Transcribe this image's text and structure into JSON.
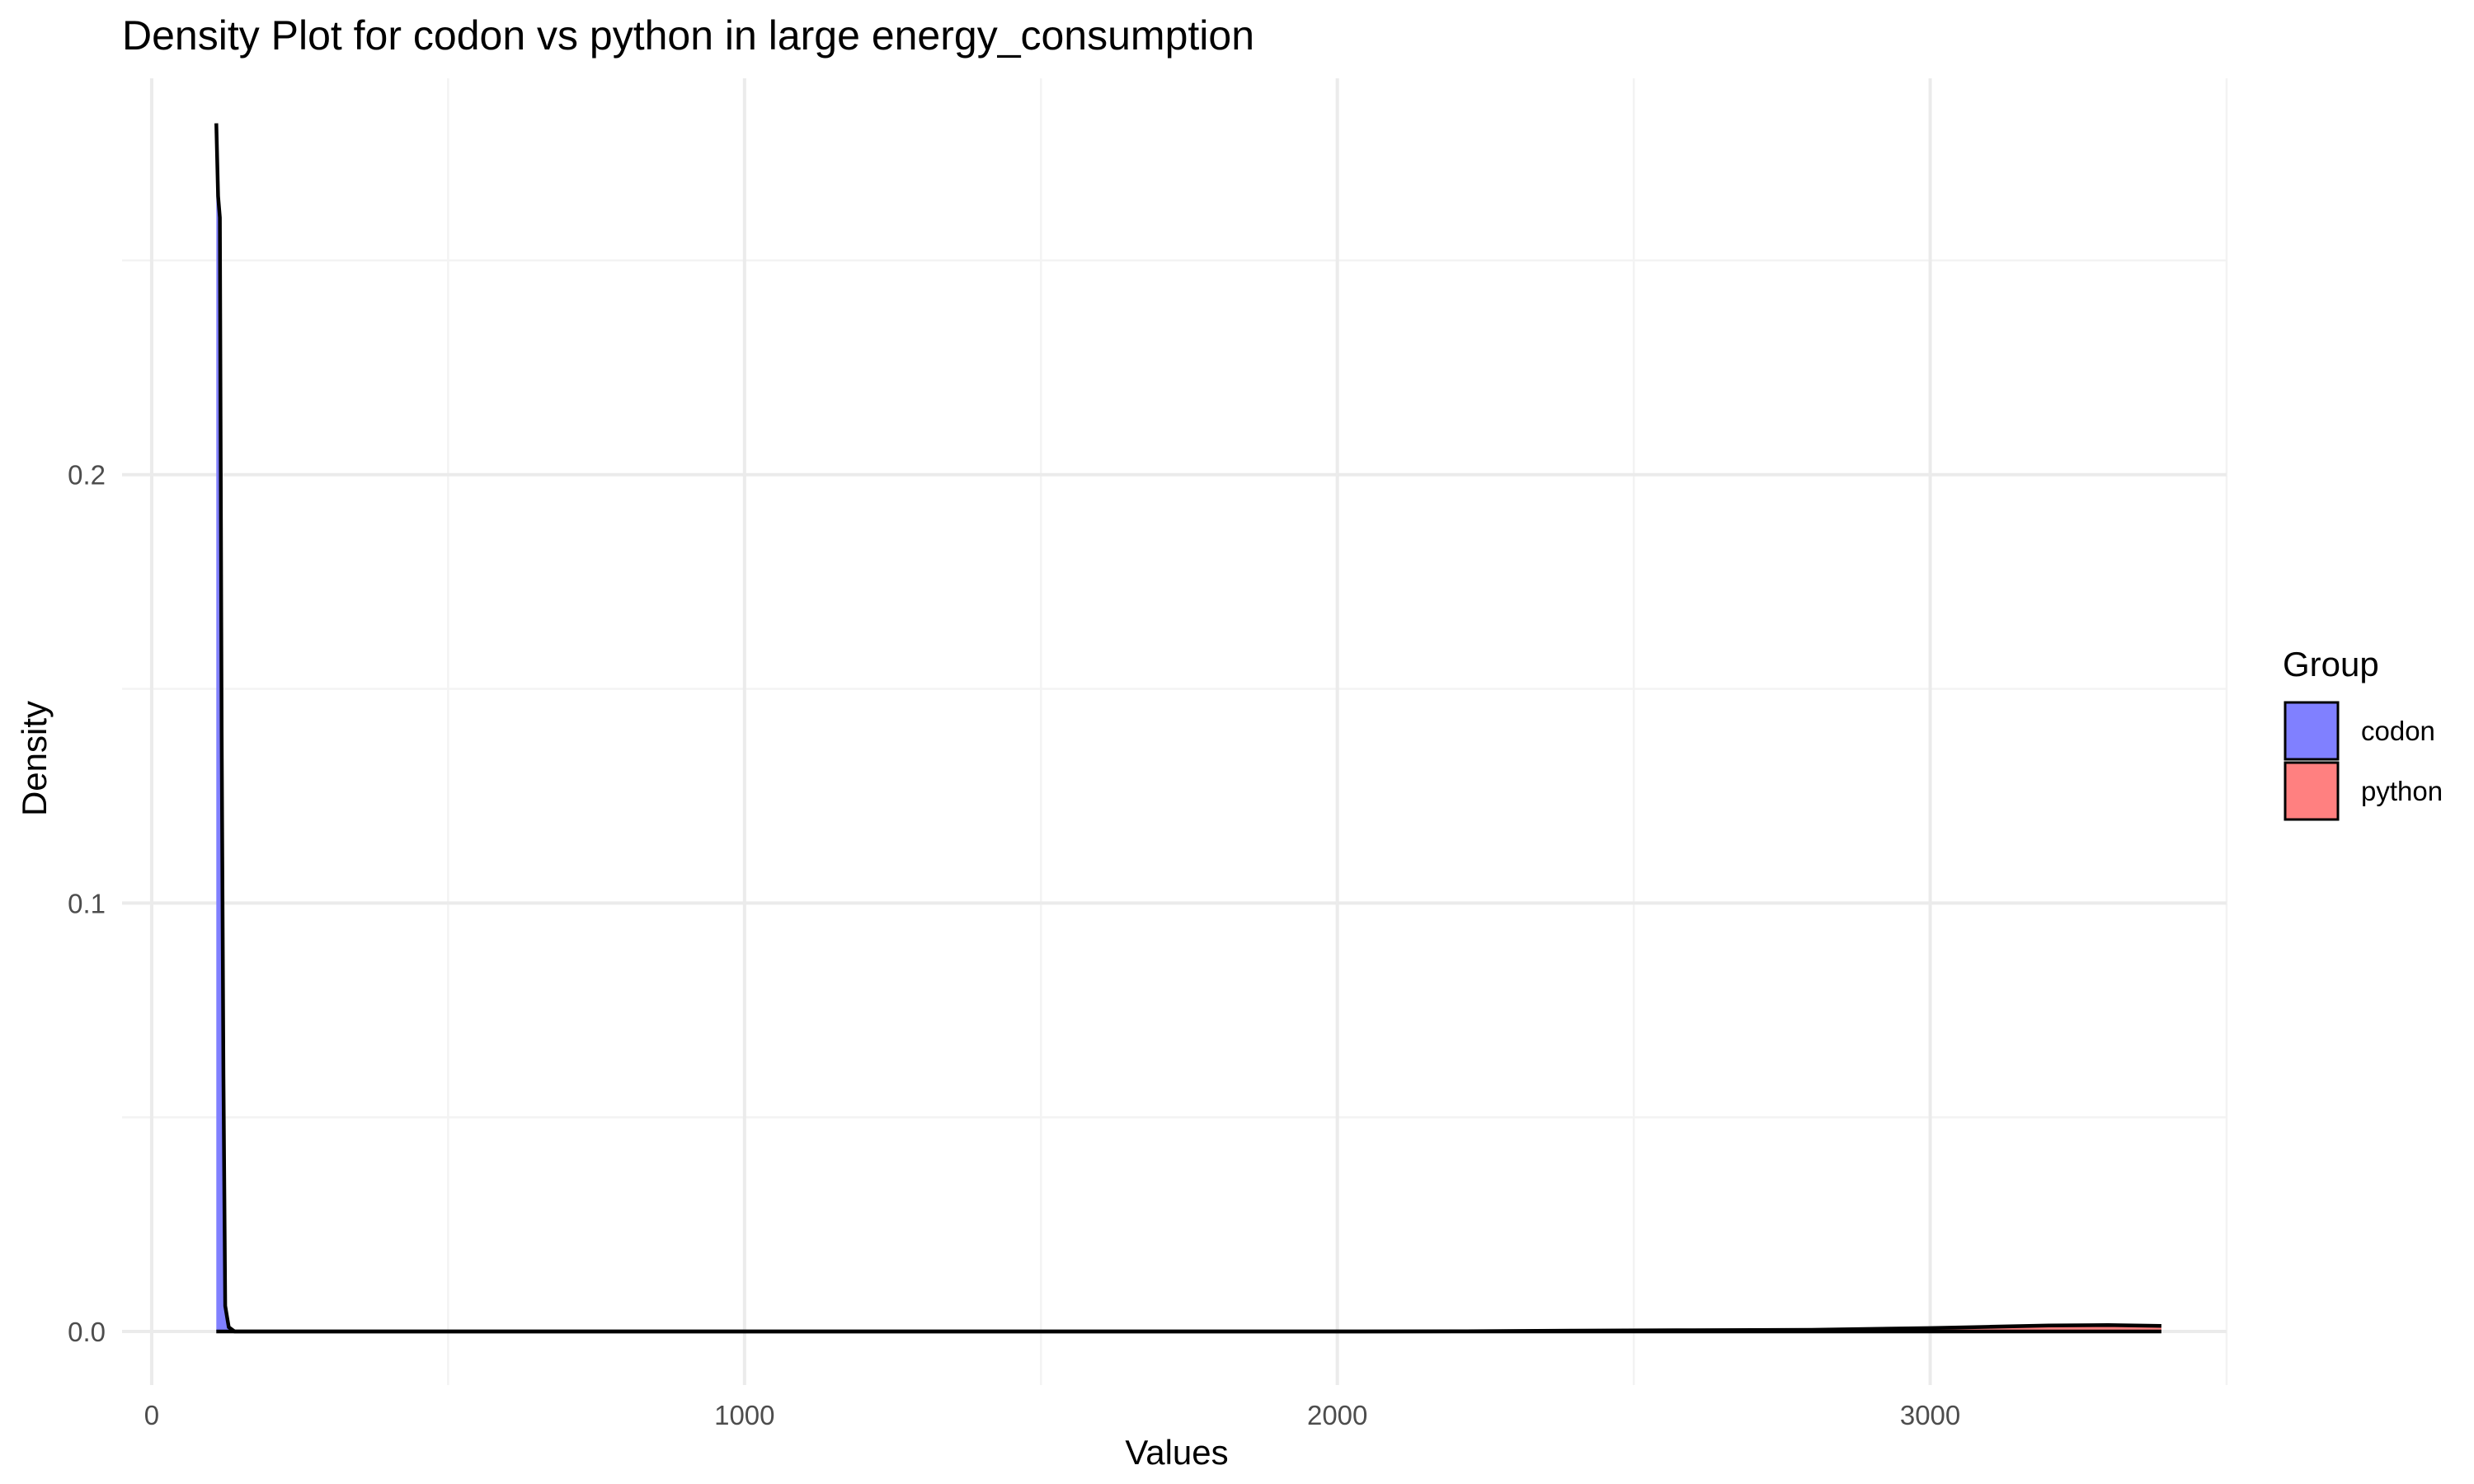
{
  "chart_data": {
    "type": "area",
    "subtype": "density",
    "title": "Density Plot for codon vs python in large energy_consumption",
    "xlabel": "Values",
    "ylabel": "Density",
    "xlim": [
      -50,
      3500
    ],
    "ylim": [
      -0.0125,
      0.2925
    ],
    "x_ticks": [
      0,
      1000,
      2000,
      3000
    ],
    "x_tick_labels": [
      "0",
      "1000",
      "2000",
      "3000"
    ],
    "x_minor_ticks": [
      500,
      1500,
      2500,
      3500
    ],
    "y_ticks": [
      0.0,
      0.1,
      0.2
    ],
    "y_tick_labels": [
      "0.0",
      "0.1",
      "0.2"
    ],
    "y_minor_ticks": [
      0.05,
      0.15,
      0.25
    ],
    "grid": true,
    "legend": {
      "title": "Group",
      "position": "right"
    },
    "series": [
      {
        "name": "codon",
        "color": "#8080ff",
        "outline": "#000000",
        "x": [
          109,
          112,
          115,
          118,
          121,
          124,
          130,
          140,
          3390
        ],
        "y": [
          0.282,
          0.265,
          0.26,
          0.14,
          0.06,
          0.006,
          0.001,
          0.0,
          0.0
        ]
      },
      {
        "name": "python",
        "color": "#ff8080",
        "outline": "#000000",
        "x": [
          109,
          500,
          1000,
          1500,
          2000,
          2200,
          2400,
          2600,
          2800,
          3000,
          3100,
          3200,
          3300,
          3390
        ],
        "y": [
          0.0,
          0.0,
          0.0,
          0.0,
          0.0,
          5e-05,
          0.0002,
          0.0003,
          0.0004,
          0.0008,
          0.0011,
          0.0014,
          0.0015,
          0.0013
        ]
      }
    ]
  }
}
